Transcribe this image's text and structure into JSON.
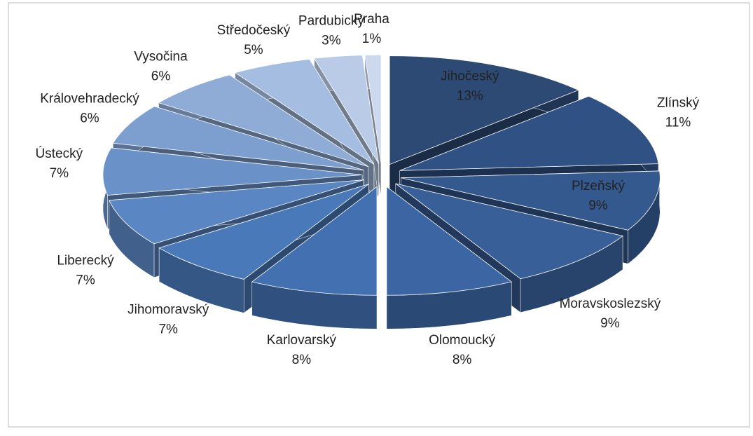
{
  "chart_data": {
    "type": "pie",
    "categories": [
      "Jihočeský",
      "Zlínský",
      "Plzeňský",
      "Moravskoslezský",
      "Olomoucký",
      "Karlovarský",
      "Jihomoravský",
      "Liberecký",
      "Ústecký",
      "Královehradecký",
      "Vysočina",
      "Středočeský",
      "Pardubický",
      "Praha"
    ],
    "values": [
      13,
      11,
      9,
      9,
      8,
      8,
      7,
      7,
      7,
      6,
      6,
      5,
      3,
      1
    ],
    "value_labels": [
      "13%",
      "11%",
      "9%",
      "9%",
      "8%",
      "8%",
      "7%",
      "7%",
      "7%",
      "6%",
      "6%",
      "5%",
      "3%",
      "1%"
    ],
    "colors": [
      "#2c4a74",
      "#2f5183",
      "#34598f",
      "#385f98",
      "#3c66a3",
      "#4270b0",
      "#4a79b9",
      "#5a86c3",
      "#6a92c9",
      "#7d9fd0",
      "#8eacd6",
      "#a4bde0",
      "#b9cbe6",
      "#cbd8ee"
    ]
  }
}
